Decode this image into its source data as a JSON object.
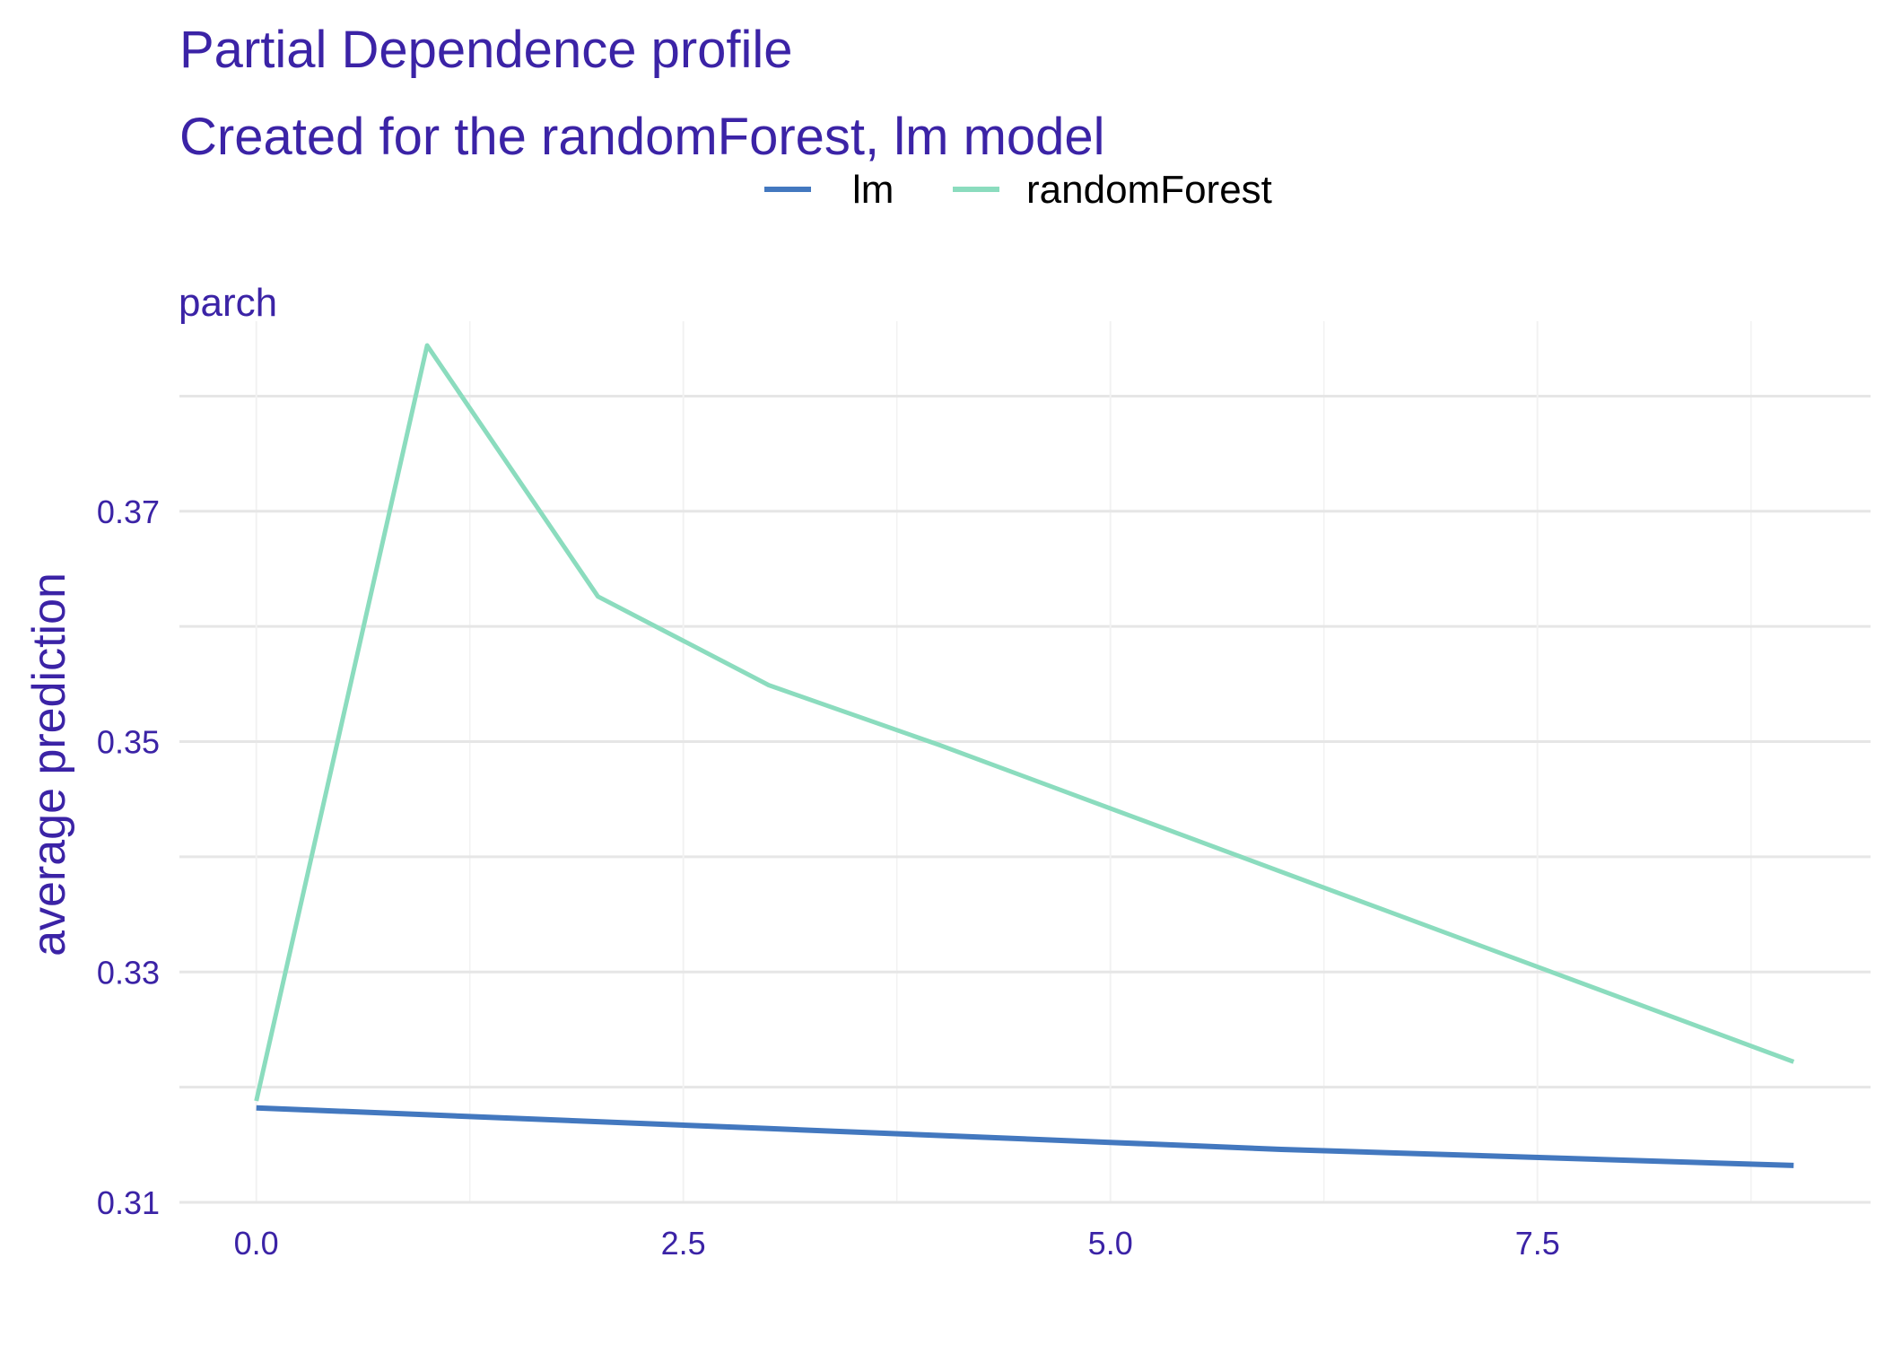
{
  "chart_data": {
    "type": "line",
    "title": "Partial Dependence profile",
    "subtitle": "Created for the randomForest, lm model",
    "panel_label": "parch",
    "xlabel": "",
    "ylabel": "average prediction",
    "xlim": [
      -0.45,
      9.45
    ],
    "ylim": [
      0.31,
      0.3865
    ],
    "x_ticks": [
      "0.0",
      "2.5",
      "5.0",
      "7.5"
    ],
    "y_ticks": [
      "0.31",
      "0.33",
      "0.35",
      "0.37"
    ],
    "x_minor_ticks": [
      1.25,
      3.75,
      6.25,
      8.75
    ],
    "y_minor_ticks": [
      0.32,
      0.34,
      0.36,
      0.38
    ],
    "grid": true,
    "legend_position": "top",
    "series": [
      {
        "name": "lm",
        "color": "#4378bf",
        "x": [
          0,
          1,
          2,
          3,
          4,
          5,
          6,
          9
        ],
        "values": [
          0.3182,
          0.3176,
          0.317,
          0.3164,
          0.3158,
          0.3152,
          0.3146,
          0.3132
        ]
      },
      {
        "name": "randomForest",
        "color": "#8bdcbe",
        "x": [
          0,
          1,
          2,
          3,
          4,
          5,
          6,
          9
        ],
        "values": [
          0.3188,
          0.3844,
          0.3626,
          0.3549,
          0.3497,
          0.3442,
          0.3387,
          0.3222
        ]
      }
    ]
  },
  "style": {
    "title_color": "#3b23a6",
    "axis_text_color": "#3b23a6",
    "major_grid_color": "#e6e6e6",
    "minor_grid_color": "#f2f2f2"
  }
}
